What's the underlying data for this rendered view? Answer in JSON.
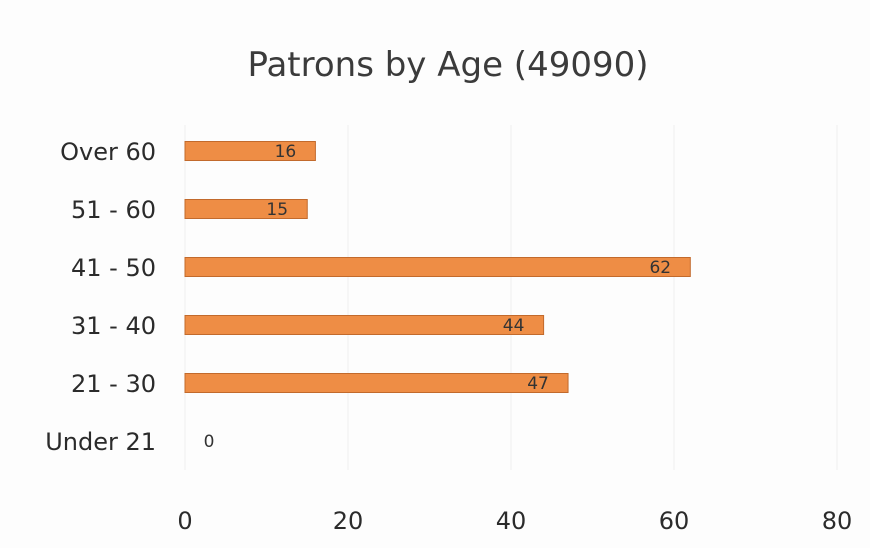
{
  "chart_data": {
    "type": "bar",
    "orientation": "horizontal",
    "title": "Patrons by Age (49090)",
    "categories": [
      "Over 60",
      "51 - 60",
      "41 - 50",
      "31 - 40",
      "21 - 30",
      "Under 21"
    ],
    "values": [
      16,
      15,
      62,
      44,
      47,
      0
    ],
    "xlabel": "",
    "ylabel": "",
    "xlim": [
      0,
      80
    ],
    "xticks": [
      "0",
      "20",
      "40",
      "60",
      "80"
    ],
    "grid": "vertical",
    "legend": "none",
    "bar_color": "#ee8d45",
    "bar_edge_color": "#c26a2c",
    "grid_color": "#eeeeee"
  }
}
